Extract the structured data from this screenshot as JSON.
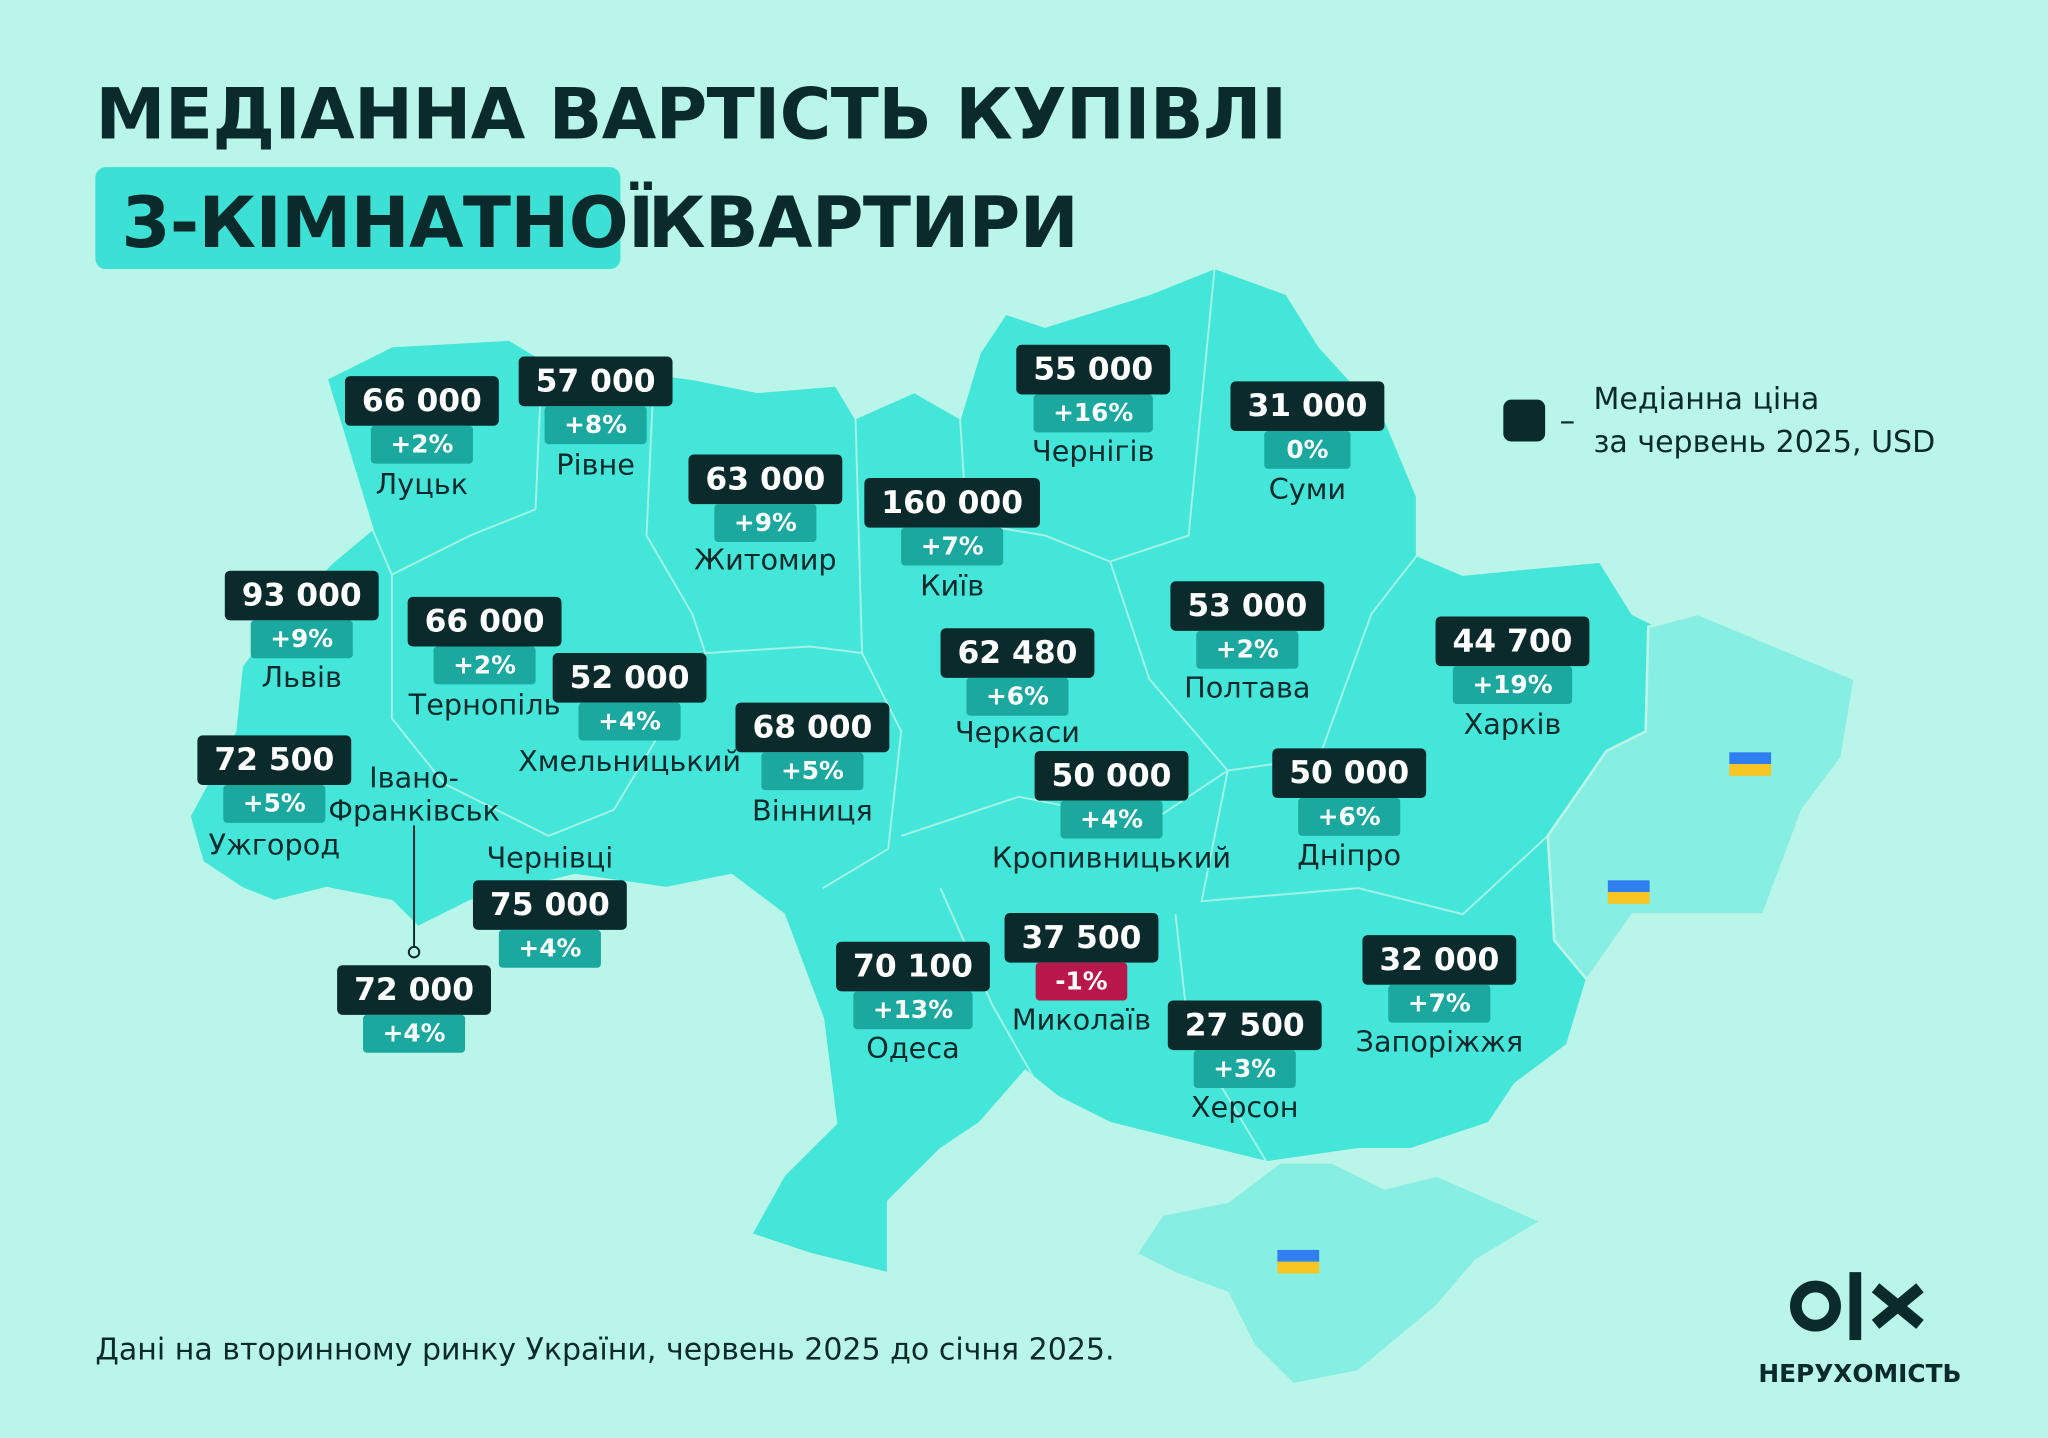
{
  "header": {
    "title_line1": "МЕДІАННА ВАРТІСТЬ КУПІВЛІ",
    "title_highlight": "3-КІМНАТНОЇ",
    "title_line2_rest": "КВАРТИРИ"
  },
  "legend": {
    "dash": "–",
    "lines": [
      "Медіанна ціна",
      "за червень 2025, USD"
    ]
  },
  "regions": [
    {
      "name": [
        "Луцьк"
      ],
      "price": "66 000",
      "change": "+2%"
    },
    {
      "name": [
        "Рівне"
      ],
      "price": "57 000",
      "change": "+8%"
    },
    {
      "name": [
        "Житомир"
      ],
      "price": "63 000",
      "change": "+9%"
    },
    {
      "name": [
        "Київ"
      ],
      "price": "160 000",
      "change": "+7%"
    },
    {
      "name": [
        "Чернігів"
      ],
      "price": "55 000",
      "change": "+16%"
    },
    {
      "name": [
        "Суми"
      ],
      "price": "31 000",
      "change": "0%"
    },
    {
      "name": [
        "Львів"
      ],
      "price": "93 000",
      "change": "+9%"
    },
    {
      "name": [
        "Тернопіль"
      ],
      "price": "66 000",
      "change": "+2%"
    },
    {
      "name": [
        "Хмельницький"
      ],
      "price": "52 000",
      "change": "+4%"
    },
    {
      "name": [
        "Вінниця"
      ],
      "price": "68 000",
      "change": "+5%"
    },
    {
      "name": [
        "Черкаси"
      ],
      "price": "62 480",
      "change": "+6%"
    },
    {
      "name": [
        "Полтава"
      ],
      "price": "53 000",
      "change": "+2%"
    },
    {
      "name": [
        "Харків"
      ],
      "price": "44 700",
      "change": "+19%"
    },
    {
      "name": [
        "Ужгород"
      ],
      "price": "72 500",
      "change": "+5%"
    },
    {
      "name": [
        "Івано-",
        "Франківськ"
      ],
      "price": "72 000",
      "change": "+4%"
    },
    {
      "name": [
        "Чернівці"
      ],
      "price": "75 000",
      "change": "+4%"
    },
    {
      "name": [
        "Кропивницький"
      ],
      "price": "50 000",
      "change": "+4%"
    },
    {
      "name": [
        "Дніпро"
      ],
      "price": "50 000",
      "change": "+6%"
    },
    {
      "name": [
        "Одеса"
      ],
      "price": "70 100",
      "change": "+13%"
    },
    {
      "name": [
        "Миколаїв"
      ],
      "price": "37 500",
      "change": "-1%"
    },
    {
      "name": [
        "Херсон"
      ],
      "price": "27 500",
      "change": "+3%"
    },
    {
      "name": [
        "Запоріжжя"
      ],
      "price": "32 000",
      "change": "+7%"
    }
  ],
  "footer": {
    "note": "Дані на вторинному ринку України, червень 2025 до січня 2025.",
    "brand": "НЕРУХОМІСТЬ"
  }
}
